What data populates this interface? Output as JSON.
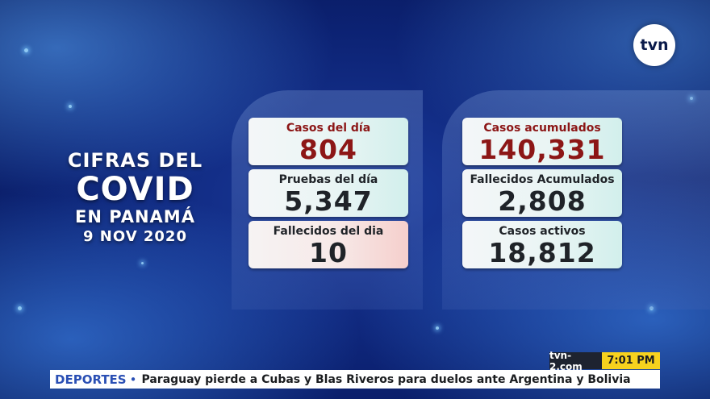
{
  "logo": {
    "text": "tvn"
  },
  "title": {
    "line1": "CIFRAS DEL",
    "line2": "COVID",
    "line3": "EN PANAMÁ",
    "date": "9 NOV 2020"
  },
  "daily": [
    {
      "label": "Casos del día",
      "value": "804"
    },
    {
      "label": "Pruebas del día",
      "value": "5,347"
    },
    {
      "label": "Fallecidos del dia",
      "value": "10"
    }
  ],
  "cumulative": [
    {
      "label": "Casos acumulados",
      "value": "140,331"
    },
    {
      "label": "Fallecidos Acumulados",
      "value": "2,808"
    },
    {
      "label": "Casos activos",
      "value": "18,812"
    }
  ],
  "ticker": {
    "section": "DEPORTES",
    "bullet": "•",
    "headline": "Paraguay pierde a Cubas y Blas Riveros para duelos ante Argentina y Bolivia",
    "site": "tvn-2.com",
    "time": "7:01 PM"
  },
  "colors": {
    "accent_red": "#8c1616",
    "ticker_section": "#2a4fb4",
    "time_badge": "#f7d21e",
    "background": "#0c2273"
  }
}
